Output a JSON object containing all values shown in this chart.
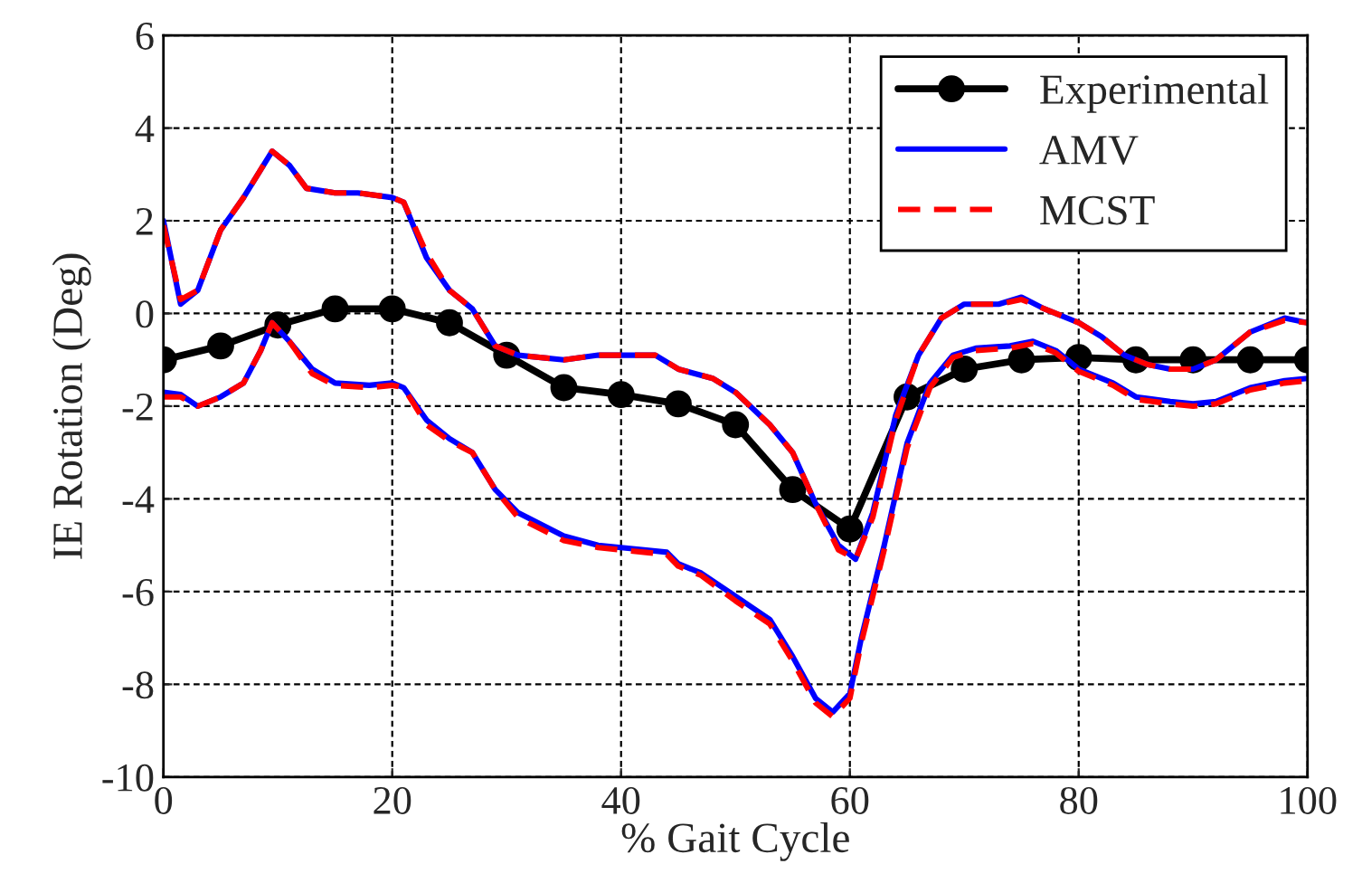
{
  "chart_data": {
    "type": "line",
    "xlabel": "% Gait Cycle",
    "ylabel": "IE Rotation (Deg)",
    "xlim": [
      0,
      100
    ],
    "xticks": [
      0,
      20,
      40,
      60,
      80,
      100
    ],
    "ylim": [
      -10,
      6
    ],
    "yticks": [
      -10,
      -8,
      -6,
      -4,
      -2,
      0,
      2,
      4,
      6
    ],
    "grid": true,
    "legend": "top right",
    "series": [
      {
        "name": "Experimental",
        "color": "#000000",
        "marker": "circle",
        "line_style": "solid",
        "x": [
          0,
          5,
          10,
          15,
          20,
          25,
          30,
          35,
          40,
          45,
          50,
          55,
          60,
          65,
          70,
          75,
          80,
          85,
          90,
          95,
          100
        ],
        "values": [
          -1.0,
          -0.7,
          -0.25,
          0.1,
          0.1,
          -0.2,
          -0.9,
          -1.6,
          -1.75,
          -1.95,
          -2.4,
          -3.8,
          -4.65,
          -1.8,
          -1.2,
          -1.0,
          -0.95,
          -1.0,
          -1.0,
          -1.0,
          -1.0
        ]
      },
      {
        "name": "AMV",
        "color": "#0000ff",
        "marker": "none",
        "line_style": "solid",
        "x": [
          0,
          1.5,
          3,
          5,
          7,
          9.5,
          11,
          12.5,
          15,
          17,
          20,
          21,
          23,
          25,
          27,
          29,
          31,
          35,
          38,
          43,
          45,
          48,
          50,
          53,
          55,
          57,
          59,
          60.5,
          62,
          64,
          66,
          68,
          70,
          73,
          75,
          77,
          80,
          82,
          84,
          86,
          88,
          90,
          92,
          95,
          98,
          100
        ],
        "values": [
          2.0,
          0.2,
          0.5,
          1.8,
          2.5,
          3.5,
          3.2,
          2.7,
          2.6,
          2.6,
          2.5,
          2.4,
          1.2,
          0.5,
          0.1,
          -0.7,
          -0.9,
          -1.0,
          -0.9,
          -0.9,
          -1.2,
          -1.4,
          -1.7,
          -2.4,
          -3.0,
          -4.1,
          -5.0,
          -5.3,
          -4.3,
          -2.2,
          -0.9,
          -0.1,
          0.2,
          0.2,
          0.35,
          0.1,
          -0.2,
          -0.5,
          -0.9,
          -1.1,
          -1.2,
          -1.2,
          -1.0,
          -0.4,
          -0.1,
          -0.2
        ]
      },
      {
        "color": "#0000ff",
        "marker": "none",
        "line_style": "solid",
        "x": [
          0,
          1.5,
          3,
          5,
          7,
          8.5,
          9.5,
          11,
          13,
          15,
          18,
          20,
          21,
          23,
          25,
          27,
          29,
          31,
          35,
          38,
          42,
          44,
          45,
          47,
          50,
          53,
          55,
          57,
          58.5,
          60,
          61,
          63,
          65,
          67,
          69,
          71,
          74,
          76,
          78,
          80,
          83,
          85,
          88,
          90,
          92,
          95,
          98,
          100
        ],
        "values": [
          -1.7,
          -1.75,
          -2.0,
          -1.8,
          -1.5,
          -0.8,
          -0.2,
          -0.6,
          -1.2,
          -1.5,
          -1.55,
          -1.5,
          -1.6,
          -2.3,
          -2.7,
          -3.0,
          -3.8,
          -4.3,
          -4.8,
          -5.0,
          -5.1,
          -5.15,
          -5.4,
          -5.6,
          -6.1,
          -6.6,
          -7.4,
          -8.3,
          -8.6,
          -8.2,
          -7.0,
          -5.0,
          -2.8,
          -1.5,
          -0.9,
          -0.75,
          -0.7,
          -0.6,
          -0.8,
          -1.2,
          -1.5,
          -1.8,
          -1.9,
          -1.95,
          -1.9,
          -1.6,
          -1.45,
          -1.4
        ]
      },
      {
        "name": "MCST",
        "color": "#ff0000",
        "marker": "none",
        "line_style": "dashed",
        "x": [
          0,
          1.5,
          3,
          5,
          7,
          9.5,
          11,
          12.5,
          15,
          17,
          20,
          21,
          23,
          25,
          27,
          29,
          31,
          35,
          38,
          43,
          45,
          48,
          50,
          53,
          55,
          57,
          59,
          60.5,
          62,
          64,
          66,
          68,
          70,
          73,
          75,
          77,
          80,
          82,
          84,
          86,
          88,
          90,
          92,
          95,
          98,
          100
        ],
        "values": [
          1.9,
          0.3,
          0.5,
          1.8,
          2.5,
          3.5,
          3.2,
          2.7,
          2.6,
          2.6,
          2.5,
          2.4,
          1.3,
          0.5,
          0.1,
          -0.7,
          -0.9,
          -1.0,
          -0.9,
          -0.9,
          -1.2,
          -1.4,
          -1.7,
          -2.4,
          -3.0,
          -4.1,
          -5.1,
          -5.3,
          -4.4,
          -2.3,
          -0.9,
          -0.1,
          0.2,
          0.2,
          0.3,
          0.1,
          -0.2,
          -0.5,
          -0.9,
          -1.1,
          -1.2,
          -1.2,
          -1.0,
          -0.4,
          -0.15,
          -0.2
        ]
      },
      {
        "color": "#ff0000",
        "marker": "none",
        "line_style": "dashed",
        "x": [
          0,
          1.5,
          3,
          5,
          7,
          8.5,
          9.5,
          11,
          13,
          15,
          18,
          20,
          21,
          23,
          25,
          27,
          29,
          31,
          35,
          38,
          42,
          44,
          45,
          47,
          50,
          53,
          55,
          57,
          58.5,
          60,
          61,
          63,
          65,
          67,
          69,
          71,
          74,
          76,
          78,
          80,
          83,
          85,
          88,
          90,
          92,
          95,
          98,
          100
        ],
        "values": [
          -1.8,
          -1.8,
          -2.0,
          -1.8,
          -1.5,
          -0.8,
          -0.2,
          -0.6,
          -1.3,
          -1.55,
          -1.6,
          -1.55,
          -1.6,
          -2.4,
          -2.75,
          -3.0,
          -3.8,
          -4.4,
          -4.9,
          -5.05,
          -5.15,
          -5.2,
          -5.45,
          -5.65,
          -6.2,
          -6.7,
          -7.5,
          -8.4,
          -8.7,
          -8.3,
          -7.1,
          -5.1,
          -2.9,
          -1.6,
          -0.95,
          -0.8,
          -0.75,
          -0.65,
          -0.85,
          -1.25,
          -1.55,
          -1.85,
          -1.95,
          -2.0,
          -1.95,
          -1.65,
          -1.5,
          -1.45
        ]
      }
    ]
  }
}
